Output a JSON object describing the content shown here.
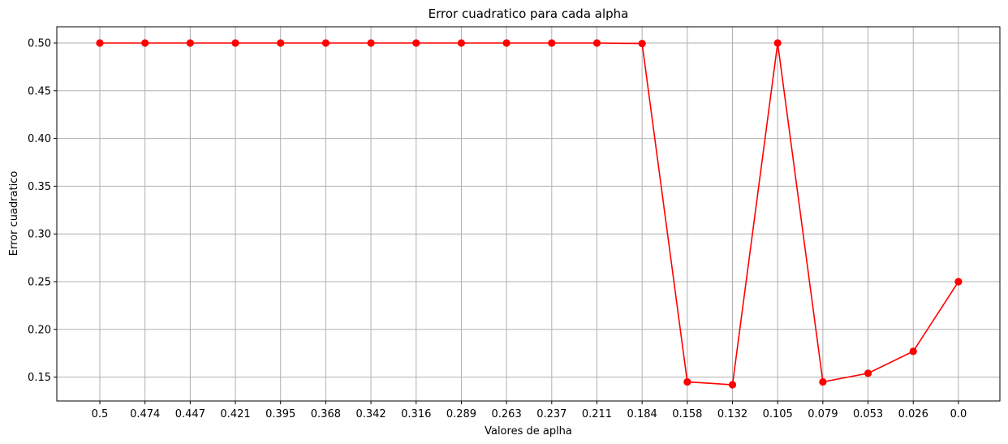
{
  "chart_data": {
    "type": "line",
    "title": "Error cuadratico para cada alpha",
    "xlabel": "Valores de aplha",
    "ylabel": "Error cuadratico",
    "categories": [
      "0.5",
      "0.474",
      "0.447",
      "0.421",
      "0.395",
      "0.368",
      "0.342",
      "0.316",
      "0.289",
      "0.263",
      "0.237",
      "0.211",
      "0.184",
      "0.158",
      "0.132",
      "0.105",
      "0.079",
      "0.053",
      "0.026",
      "0.0"
    ],
    "series": [
      {
        "color": "#ff0000",
        "marker": "circle",
        "values": [
          0.5,
          0.5,
          0.5,
          0.5,
          0.5,
          0.5,
          0.5,
          0.5,
          0.5,
          0.5,
          0.5,
          0.5,
          0.4995,
          0.145,
          0.142,
          0.5,
          0.145,
          0.154,
          0.177,
          0.25
        ]
      }
    ],
    "ylim": [
      0.125,
      0.517
    ],
    "yticks": [
      "0.15",
      "0.20",
      "0.25",
      "0.30",
      "0.35",
      "0.40",
      "0.45",
      "0.50"
    ],
    "ytick_values": [
      0.15,
      0.2,
      0.25,
      0.3,
      0.35,
      0.4,
      0.45,
      0.5
    ],
    "grid": true
  }
}
